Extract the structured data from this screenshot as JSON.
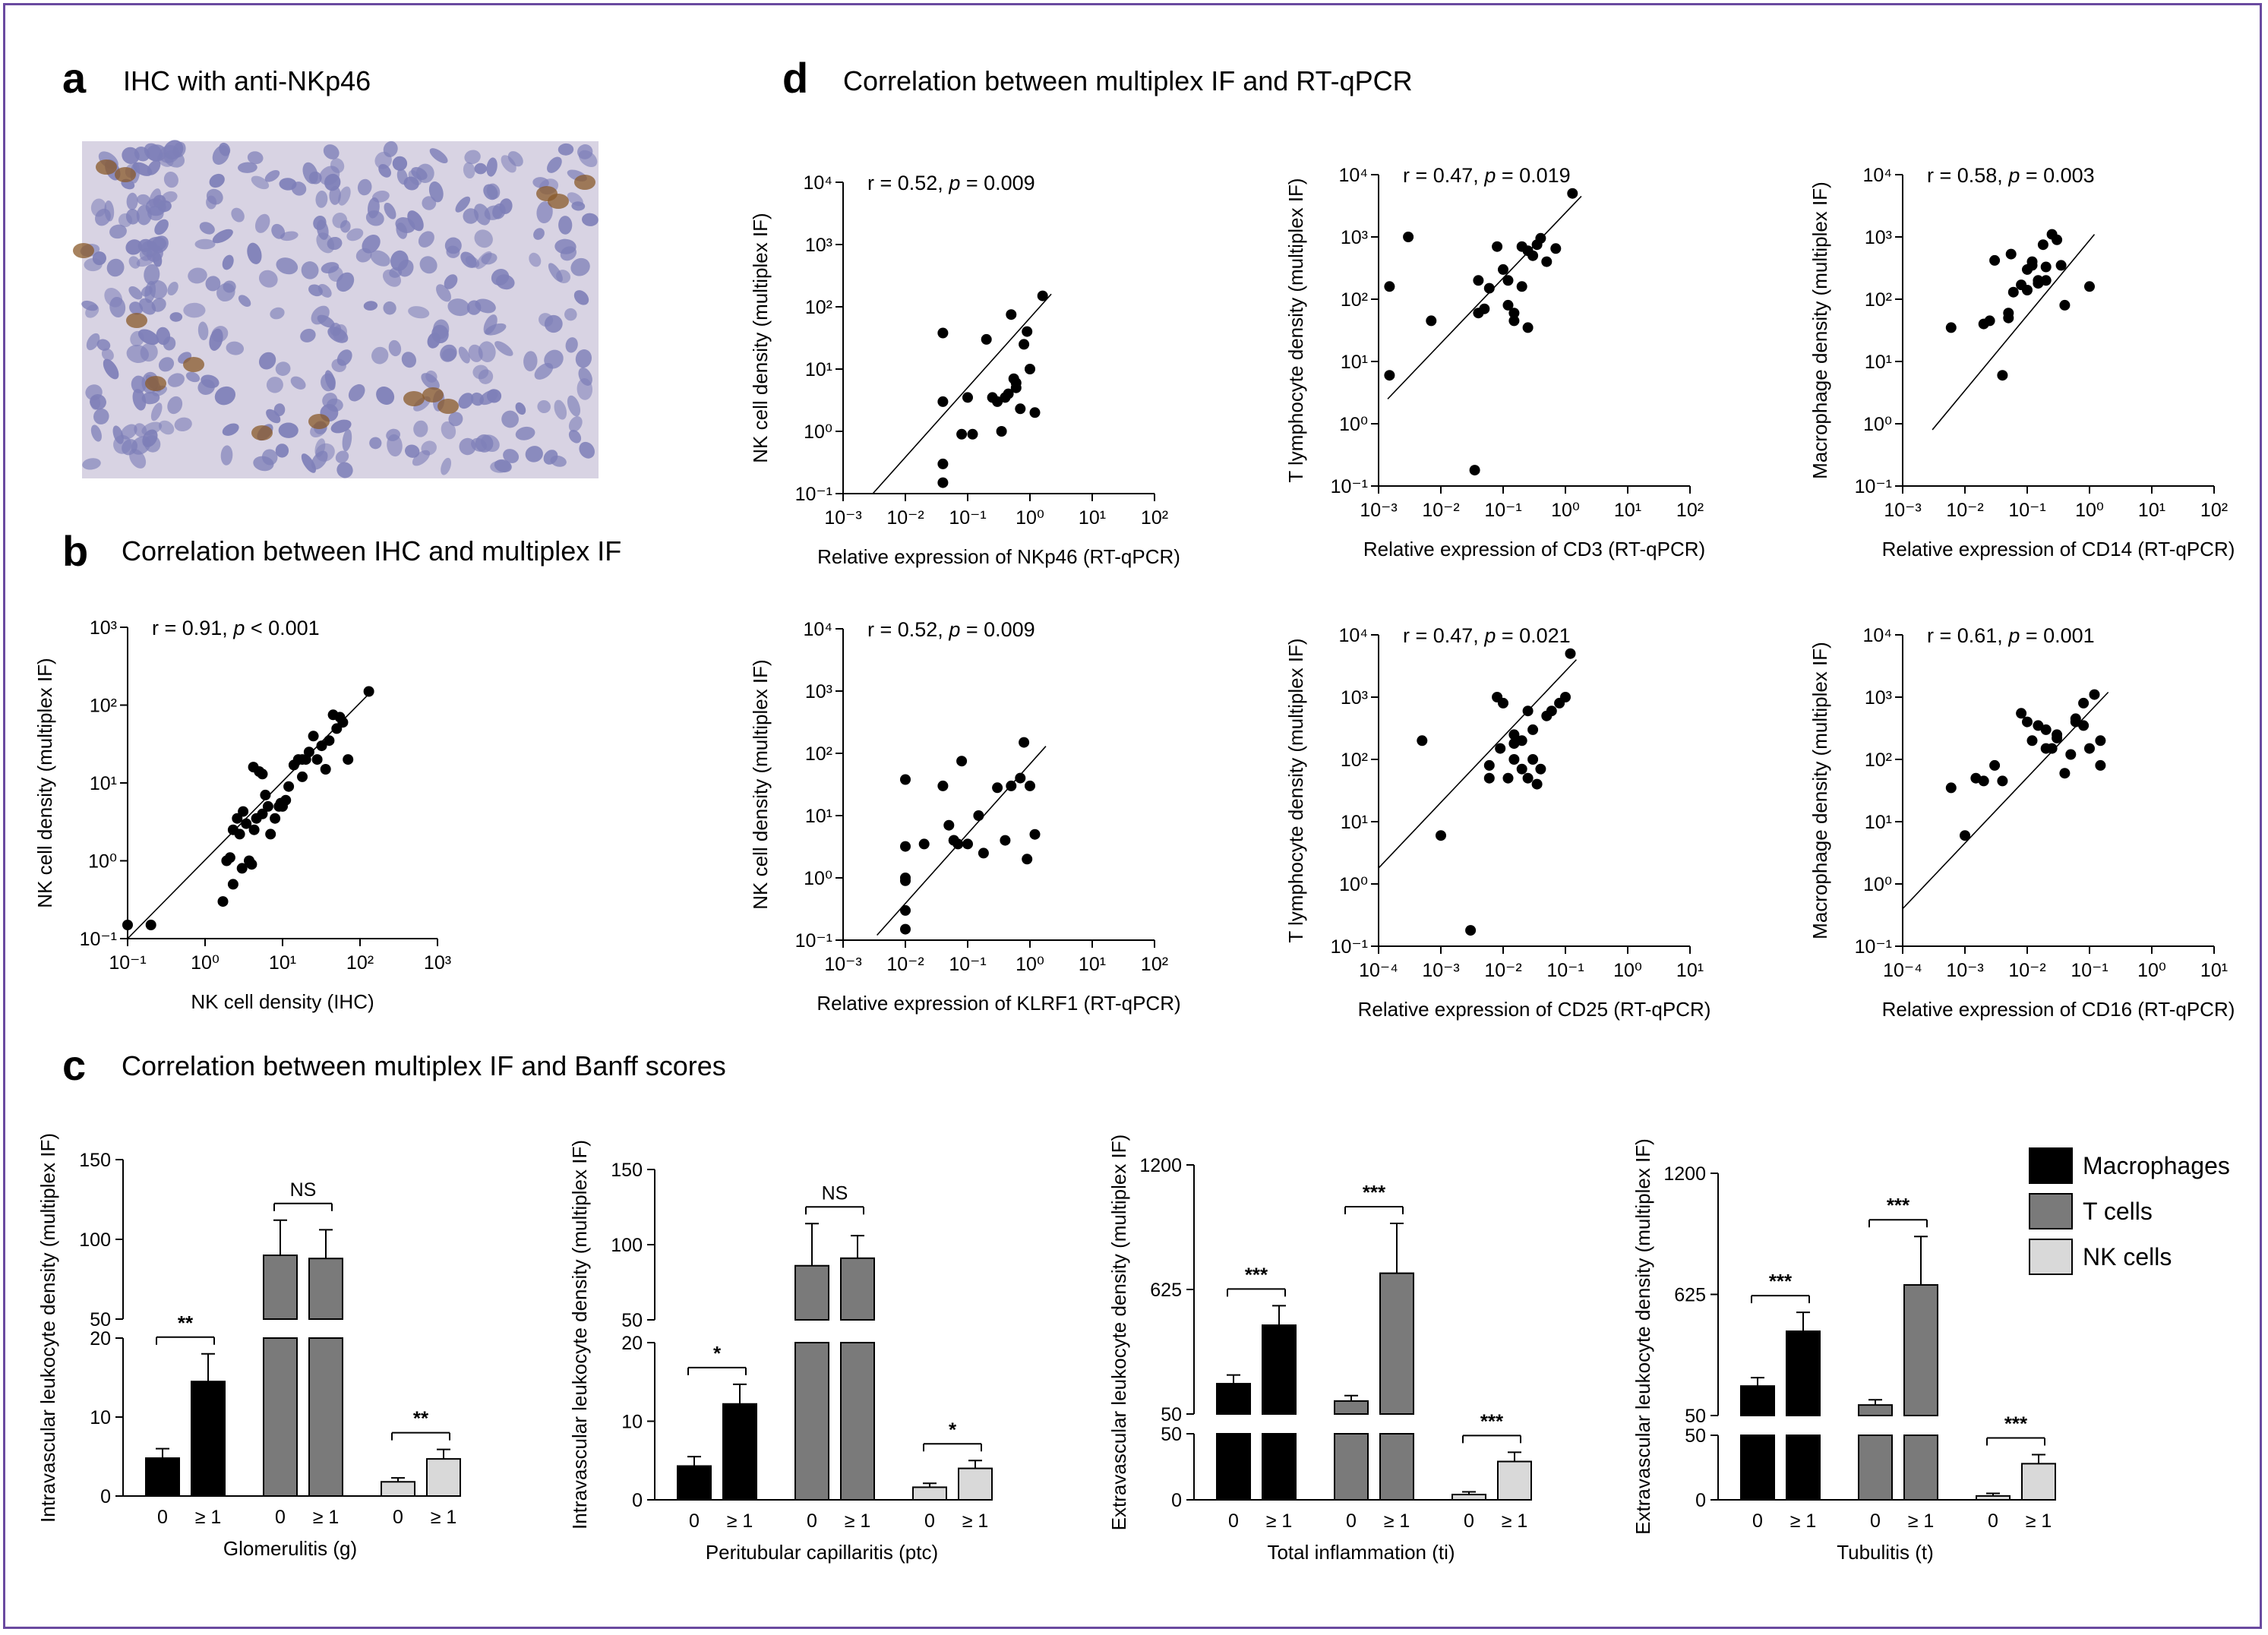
{
  "panels": {
    "a": {
      "letter": "a",
      "title": "IHC with anti-NKp46"
    },
    "b": {
      "letter": "b",
      "title": "Correlation between IHC and multiplex IF"
    },
    "c": {
      "letter": "c",
      "title": "Correlation between multiplex IF and Banff scores"
    },
    "d": {
      "letter": "d",
      "title": "Correlation between multiplex IF and RT-qPCR"
    }
  },
  "colors": {
    "frame": "#6a4aa0",
    "macrophages": "#000000",
    "t_cells": "#7a7a7a",
    "nk_cells": "#d9d9d9"
  },
  "image_a": {
    "description_icon": "micrograph-icon",
    "stain_color": "#8a5a2a",
    "tissue_color": "#7e7fb8",
    "background_color": "#d8d3e3"
  },
  "chart_data": [
    {
      "id": "b",
      "type": "scatter",
      "log": true,
      "annotation_r": "r = 0.91, ",
      "annotation_p": "p",
      "annotation_p_val": " < 0.001",
      "xlabel": "NK cell density (IHC)",
      "ylabel": "NK cell density (multiplex IF)",
      "xlim_exp": [
        -1,
        3
      ],
      "ylim_exp": [
        -1,
        3
      ],
      "xticks": [
        "10⁻¹",
        "10⁰",
        "10¹",
        "10²",
        "10³"
      ],
      "yticks": [
        "10⁻¹",
        "10⁰",
        "10¹",
        "10²",
        "10³"
      ],
      "fit": {
        "x": [
          0.1,
          140
        ],
        "y": [
          0.1,
          150
        ]
      },
      "x": [
        0.1,
        0.2,
        1.7,
        1.9,
        2.1,
        2.3,
        2.6,
        2.8,
        3.1,
        3.4,
        3.7,
        4.0,
        4.3,
        4.6,
        5.0,
        5.5,
        6.0,
        7.0,
        8.0,
        9.0,
        10,
        11,
        12,
        14,
        16,
        18,
        20,
        22,
        25,
        28,
        32,
        36,
        40,
        45,
        50,
        55,
        60,
        70,
        130,
        4.2,
        5.5,
        6.5,
        3.0,
        2.3,
        9.5,
        18
      ],
      "y": [
        0.15,
        0.15,
        0.3,
        1.0,
        1.1,
        0.5,
        3.5,
        2.2,
        4.3,
        3.0,
        1.0,
        0.9,
        2.5,
        3.5,
        14,
        13,
        7,
        2.2,
        3.5,
        5,
        5,
        6,
        9,
        17,
        20,
        12,
        20,
        25,
        40,
        20,
        30,
        15,
        35,
        75,
        50,
        70,
        60,
        20,
        150,
        16,
        4,
        5,
        0.8,
        2.5,
        5.5,
        20
      ]
    },
    {
      "id": "d1",
      "type": "scatter",
      "log": true,
      "annotation_r": "r = 0.52, ",
      "annotation_p": "p",
      "annotation_p_val": " = 0.009",
      "xlabel": "Relative expression of NKp46 (RT-qPCR)",
      "ylabel": "NK cell density (multiplex IF)",
      "xlim_exp": [
        -3,
        2
      ],
      "ylim_exp": [
        -1,
        4
      ],
      "xticks": [
        "10⁻³",
        "10⁻²",
        "10⁻¹",
        "10⁰",
        "10¹",
        "10²"
      ],
      "yticks": [
        "10⁻¹",
        "10⁰",
        "10¹",
        "10²",
        "10³",
        "10⁴"
      ],
      "fit": {
        "x": [
          0.003,
          2.2
        ],
        "y": [
          0.1,
          160
        ]
      },
      "x": [
        0.04,
        0.04,
        0.04,
        0.04,
        0.08,
        0.1,
        0.12,
        0.2,
        0.25,
        0.35,
        0.4,
        0.45,
        0.5,
        0.55,
        0.6,
        0.7,
        0.8,
        0.9,
        1.0,
        1.2,
        1.6,
        0.3,
        0.6
      ],
      "y": [
        0.15,
        0.3,
        3.0,
        38,
        0.9,
        3.5,
        0.9,
        30,
        3.5,
        1.0,
        3.5,
        4.0,
        75,
        7,
        5,
        2.3,
        25,
        40,
        10,
        2.0,
        150,
        3.0,
        6
      ]
    },
    {
      "id": "d2",
      "type": "scatter",
      "log": true,
      "annotation_r": "r = 0.47, ",
      "annotation_p": "p",
      "annotation_p_val": " = 0.019",
      "xlabel": "Relative expression of CD3 (RT-qPCR)",
      "ylabel": "T lymphocyte density (multiplex IF)",
      "xlim_exp": [
        -3,
        2
      ],
      "ylim_exp": [
        -1,
        4
      ],
      "xticks": [
        "10⁻³",
        "10⁻²",
        "10⁻¹",
        "10⁰",
        "10¹",
        "10²"
      ],
      "yticks": [
        "10⁻¹",
        "10⁰",
        "10¹",
        "10²",
        "10³",
        "10⁴"
      ],
      "fit": {
        "x": [
          0.0014,
          1.8
        ],
        "y": [
          2.5,
          4500
        ]
      },
      "x": [
        0.0015,
        0.0015,
        0.003,
        0.007,
        0.035,
        0.04,
        0.04,
        0.05,
        0.06,
        0.08,
        0.1,
        0.12,
        0.15,
        0.15,
        0.2,
        0.2,
        0.25,
        0.3,
        0.35,
        0.4,
        0.5,
        0.7,
        1.3,
        0.12,
        0.25
      ],
      "y": [
        6,
        160,
        1000,
        45,
        0.18,
        60,
        200,
        70,
        150,
        700,
        300,
        80,
        45,
        60,
        160,
        700,
        600,
        500,
        750,
        950,
        400,
        650,
        5000,
        200,
        35
      ]
    },
    {
      "id": "d3",
      "type": "scatter",
      "log": true,
      "annotation_r": "r = 0.58, ",
      "annotation_p": "p",
      "annotation_p_val": " = 0.003",
      "xlabel": "Relative expression of CD14 (RT-qPCR)",
      "ylabel": "Macrophage density (multiplex IF)",
      "xlim_exp": [
        -3,
        2
      ],
      "ylim_exp": [
        -1,
        4
      ],
      "xticks": [
        "10⁻³",
        "10⁻²",
        "10⁻¹",
        "10⁰",
        "10¹",
        "10²"
      ],
      "yticks": [
        "10⁻¹",
        "10⁰",
        "10¹",
        "10²",
        "10³",
        "10⁴"
      ],
      "fit": {
        "x": [
          0.003,
          1.2
        ],
        "y": [
          0.8,
          1100
        ]
      },
      "x": [
        0.006,
        0.02,
        0.025,
        0.03,
        0.04,
        0.05,
        0.05,
        0.055,
        0.06,
        0.08,
        0.1,
        0.1,
        0.12,
        0.12,
        0.15,
        0.15,
        0.18,
        0.2,
        0.2,
        0.25,
        0.3,
        0.35,
        0.4,
        1.0
      ],
      "y": [
        35,
        40,
        45,
        420,
        6,
        50,
        60,
        530,
        130,
        170,
        140,
        300,
        400,
        350,
        200,
        180,
        750,
        330,
        200,
        1100,
        900,
        350,
        80,
        160
      ]
    },
    {
      "id": "d4",
      "type": "scatter",
      "log": true,
      "annotation_r": "r = 0.52, ",
      "annotation_p": "p",
      "annotation_p_val": " = 0.009",
      "xlabel": "Relative expression of KLRF1 (RT-qPCR)",
      "ylabel": "NK cell density (multiplex IF)",
      "xlim_exp": [
        -3,
        2
      ],
      "ylim_exp": [
        -1,
        4
      ],
      "xticks": [
        "10⁻³",
        "10⁻²",
        "10⁻¹",
        "10⁰",
        "10¹",
        "10²"
      ],
      "yticks": [
        "10⁻¹",
        "10⁰",
        "10¹",
        "10²",
        "10³",
        "10⁴"
      ],
      "fit": {
        "x": [
          0.0035,
          1.8
        ],
        "y": [
          0.12,
          130
        ]
      },
      "x": [
        0.01,
        0.01,
        0.01,
        0.01,
        0.01,
        0.01,
        0.02,
        0.04,
        0.05,
        0.06,
        0.07,
        0.08,
        0.1,
        0.15,
        0.18,
        0.3,
        0.4,
        0.5,
        0.7,
        0.8,
        0.9,
        1.0,
        1.2,
        0.06
      ],
      "y": [
        0.15,
        0.3,
        0.9,
        1.0,
        3.2,
        38,
        3.5,
        30,
        7,
        4,
        3.5,
        75,
        3.5,
        10,
        2.5,
        28,
        4,
        30,
        40,
        150,
        2.0,
        30,
        5,
        4
      ]
    },
    {
      "id": "d5",
      "type": "scatter",
      "log": true,
      "annotation_r": "r = 0.47, ",
      "annotation_p": "p",
      "annotation_p_val": " = 0.021",
      "xlabel": "Relative expression of CD25 (RT-qPCR)",
      "ylabel": "T lymphocyte density (multiplex IF)",
      "xlim_exp": [
        -4,
        1
      ],
      "ylim_exp": [
        -1,
        4
      ],
      "xticks": [
        "10⁻⁴",
        "10⁻³",
        "10⁻²",
        "10⁻¹",
        "10⁰",
        "10¹"
      ],
      "yticks": [
        "10⁻¹",
        "10⁰",
        "10¹",
        "10²",
        "10³",
        "10⁴"
      ],
      "fit": {
        "x": [
          0.0001,
          0.15
        ],
        "y": [
          1.8,
          4000
        ]
      },
      "x": [
        0.0005,
        0.001,
        0.003,
        0.006,
        0.006,
        0.008,
        0.009,
        0.01,
        0.012,
        0.015,
        0.015,
        0.02,
        0.02,
        0.025,
        0.025,
        0.03,
        0.03,
        0.035,
        0.04,
        0.05,
        0.06,
        0.08,
        0.1,
        0.12,
        0.015
      ],
      "y": [
        200,
        6,
        0.18,
        80,
        50,
        1000,
        150,
        800,
        50,
        250,
        100,
        200,
        70,
        600,
        50,
        300,
        100,
        40,
        70,
        500,
        600,
        800,
        1000,
        5000,
        180
      ]
    },
    {
      "id": "d6",
      "type": "scatter",
      "log": true,
      "annotation_r": "r = 0.61, ",
      "annotation_p": "p",
      "annotation_p_val": " = 0.001",
      "xlabel": "Relative expression of CD16 (RT-qPCR)",
      "ylabel": "Macrophage density (multiplex IF)",
      "xlim_exp": [
        -4,
        1
      ],
      "ylim_exp": [
        -1,
        4
      ],
      "xticks": [
        "10⁻⁴",
        "10⁻³",
        "10⁻²",
        "10⁻¹",
        "10⁰",
        "10¹"
      ],
      "yticks": [
        "10⁻¹",
        "10⁰",
        "10¹",
        "10²",
        "10³",
        "10⁴"
      ],
      "fit": {
        "x": [
          0.0001,
          0.2
        ],
        "y": [
          0.4,
          1200
        ]
      },
      "x": [
        0.0006,
        0.001,
        0.0015,
        0.002,
        0.003,
        0.004,
        0.008,
        0.01,
        0.012,
        0.015,
        0.02,
        0.02,
        0.025,
        0.03,
        0.04,
        0.05,
        0.06,
        0.08,
        0.08,
        0.1,
        0.12,
        0.15,
        0.15,
        0.06,
        0.03
      ],
      "y": [
        35,
        6,
        50,
        45,
        80,
        45,
        550,
        400,
        200,
        350,
        150,
        300,
        150,
        250,
        60,
        120,
        400,
        800,
        350,
        150,
        1100,
        200,
        80,
        450,
        220
      ]
    },
    {
      "id": "c1",
      "type": "bar",
      "xlabel": "Glomerulitis (g)",
      "ylabel": "Intravascular leukocyte density (multiplex IF)",
      "categories": [
        "0",
        "≥ 1",
        "0",
        "≥ 1",
        "0",
        "≥ 1"
      ],
      "groups": [
        "Macrophages",
        "Macrophages",
        "T cells",
        "T cells",
        "NK cells",
        "NK cells"
      ],
      "lower": {
        "range": [
          0,
          20
        ],
        "ticks": [
          "0",
          "10",
          "20"
        ]
      },
      "upper": {
        "range": [
          50,
          150
        ],
        "ticks": [
          "50",
          "100",
          "150"
        ]
      },
      "values": [
        4.8,
        14.5,
        90,
        88,
        1.8,
        4.7
      ],
      "errors": [
        1.2,
        3.5,
        22,
        18,
        0.5,
        1.2
      ],
      "significance": [
        {
          "label": "**",
          "pair": [
            0,
            1
          ]
        },
        {
          "label": "NS",
          "pair": [
            2,
            3
          ]
        },
        {
          "label": "**",
          "pair": [
            4,
            5
          ]
        }
      ]
    },
    {
      "id": "c2",
      "type": "bar",
      "xlabel": "Peritubular capillaritis (ptc)",
      "ylabel": "Intravascular leukocyte density (multiplex IF)",
      "categories": [
        "0",
        "≥ 1",
        "0",
        "≥ 1",
        "0",
        "≥ 1"
      ],
      "groups": [
        "Macrophages",
        "Macrophages",
        "T cells",
        "T cells",
        "NK cells",
        "NK cells"
      ],
      "lower": {
        "range": [
          0,
          20
        ],
        "ticks": [
          "0",
          "10",
          "20"
        ]
      },
      "upper": {
        "range": [
          50,
          150
        ],
        "ticks": [
          "50",
          "100",
          "150"
        ]
      },
      "values": [
        4.3,
        12.2,
        86,
        91,
        1.6,
        4.0
      ],
      "errors": [
        1.2,
        2.5,
        28,
        15,
        0.5,
        1.0
      ],
      "significance": [
        {
          "label": "*",
          "pair": [
            0,
            1
          ]
        },
        {
          "label": "NS",
          "pair": [
            2,
            3
          ]
        },
        {
          "label": "*",
          "pair": [
            4,
            5
          ]
        }
      ]
    },
    {
      "id": "c3",
      "type": "bar",
      "xlabel": "Total inflammation (ti)",
      "ylabel": "Extravascular leukocyte density (multiplex IF)",
      "categories": [
        "0",
        "≥ 1",
        "0",
        "≥ 1",
        "0",
        "≥ 1"
      ],
      "groups": [
        "Macrophages",
        "Macrophages",
        "T cells",
        "T cells",
        "NK cells",
        "NK cells"
      ],
      "lower": {
        "range": [
          0,
          50
        ],
        "ticks": [
          "0",
          "50"
        ]
      },
      "upper": {
        "range": [
          50,
          1200
        ],
        "ticks": [
          "50",
          "625",
          "1200"
        ]
      },
      "values": [
        190,
        460,
        110,
        700,
        4,
        29
      ],
      "errors": [
        40,
        90,
        25,
        230,
        2,
        7
      ],
      "significance": [
        {
          "label": "***",
          "pair": [
            0,
            1
          ]
        },
        {
          "label": "***",
          "pair": [
            2,
            3
          ]
        },
        {
          "label": "***",
          "pair": [
            4,
            5
          ]
        }
      ]
    },
    {
      "id": "c4",
      "type": "bar",
      "xlabel": "Tubulitis (t)",
      "ylabel": "Extravascular leukocyte density (multiplex IF)",
      "categories": [
        "0",
        "≥ 1",
        "0",
        "≥ 1",
        "0",
        "≥ 1"
      ],
      "groups": [
        "Macrophages",
        "Macrophages",
        "T cells",
        "T cells",
        "NK cells",
        "NK cells"
      ],
      "lower": {
        "range": [
          0,
          50
        ],
        "ticks": [
          "0",
          "50"
        ]
      },
      "upper": {
        "range": [
          50,
          1200
        ],
        "ticks": [
          "50",
          "625",
          "1200"
        ]
      },
      "values": [
        190,
        450,
        100,
        670,
        3,
        28
      ],
      "errors": [
        40,
        90,
        25,
        230,
        2,
        7
      ],
      "significance": [
        {
          "label": "***",
          "pair": [
            0,
            1
          ]
        },
        {
          "label": "***",
          "pair": [
            2,
            3
          ]
        },
        {
          "label": "***",
          "pair": [
            4,
            5
          ]
        }
      ]
    }
  ],
  "legend": [
    {
      "label": "Macrophages",
      "color": "#000000"
    },
    {
      "label": "T cells",
      "color": "#7a7a7a"
    },
    {
      "label": "NK cells",
      "color": "#d9d9d9"
    }
  ]
}
